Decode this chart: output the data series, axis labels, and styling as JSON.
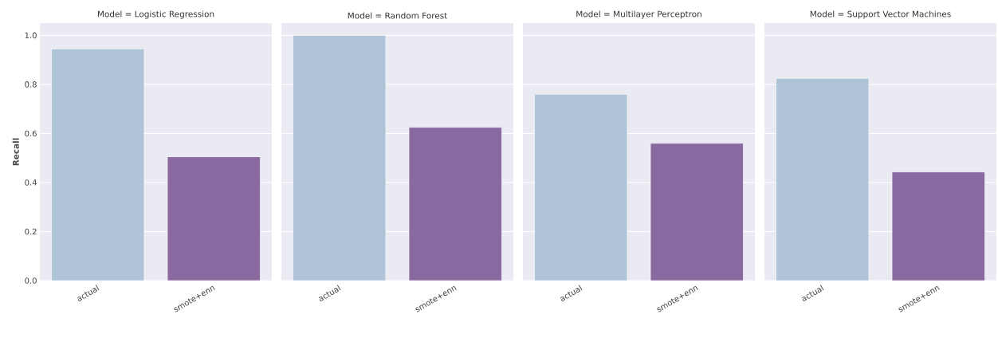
{
  "chart_data": [
    {
      "type": "bar",
      "title": "Model = Logistic Regression",
      "ylabel": "Recall",
      "categories": [
        "actual",
        "smote+enn"
      ],
      "values": [
        0.945,
        0.505
      ],
      "colors": [
        "#b0c4d8",
        "#8a68a0"
      ],
      "ylim": [
        0,
        1.05
      ],
      "yticks": [
        {
          "value": 0,
          "label": "0.0"
        },
        0.2,
        0.4,
        0.6,
        0.8,
        {
          "value": 1,
          "label": "1.0"
        }
      ],
      "grid": "y"
    },
    {
      "type": "bar",
      "title": "Model = Random Forest",
      "categories": [
        "actual",
        "smote+enn"
      ],
      "values": [
        1.0,
        0.625
      ],
      "colors": [
        "#b0c4d8",
        "#8a68a0"
      ],
      "ylim": [
        0,
        1.05
      ],
      "yticks": [
        {
          "value": 0,
          "label": null
        },
        {
          "value": 0.2,
          "label": null
        },
        {
          "value": 0.4,
          "label": null
        },
        {
          "value": 0.6,
          "label": null
        },
        {
          "value": 0.8,
          "label": null
        },
        {
          "value": 1,
          "label": null
        }
      ],
      "grid": "y",
      "tick_labels": "x"
    },
    {
      "type": "bar",
      "title": "Model = Multilayer Perceptron",
      "categories": [
        "actual",
        "smote+enn"
      ],
      "values": [
        0.76,
        0.56
      ],
      "colors": [
        "#b0c4d8",
        "#8a68a0"
      ],
      "ylim": [
        0,
        1.05
      ],
      "yticks": [
        {
          "value": 0,
          "label": null
        },
        {
          "value": 0.2,
          "label": null
        },
        {
          "value": 0.4,
          "label": null
        },
        {
          "value": 0.6,
          "label": null
        },
        {
          "value": 0.8,
          "label": null
        },
        {
          "value": 1,
          "label": null
        }
      ],
      "grid": "y",
      "tick_labels": "x"
    },
    {
      "type": "bar",
      "title": "Model = Support Vector Machines",
      "categories": [
        "actual",
        "smote+enn"
      ],
      "values": [
        0.825,
        0.443
      ],
      "colors": [
        "#b0c4d8",
        "#8a68a0"
      ],
      "ylim": [
        0,
        1.05
      ],
      "yticks": [
        {
          "value": 0,
          "label": null
        },
        {
          "value": 0.2,
          "label": null
        },
        {
          "value": 0.4,
          "label": null
        },
        {
          "value": 0.6,
          "label": null
        },
        {
          "value": 0.8,
          "label": null
        },
        {
          "value": 1,
          "label": null
        }
      ],
      "grid": "y",
      "tick_labels": "x"
    }
  ]
}
